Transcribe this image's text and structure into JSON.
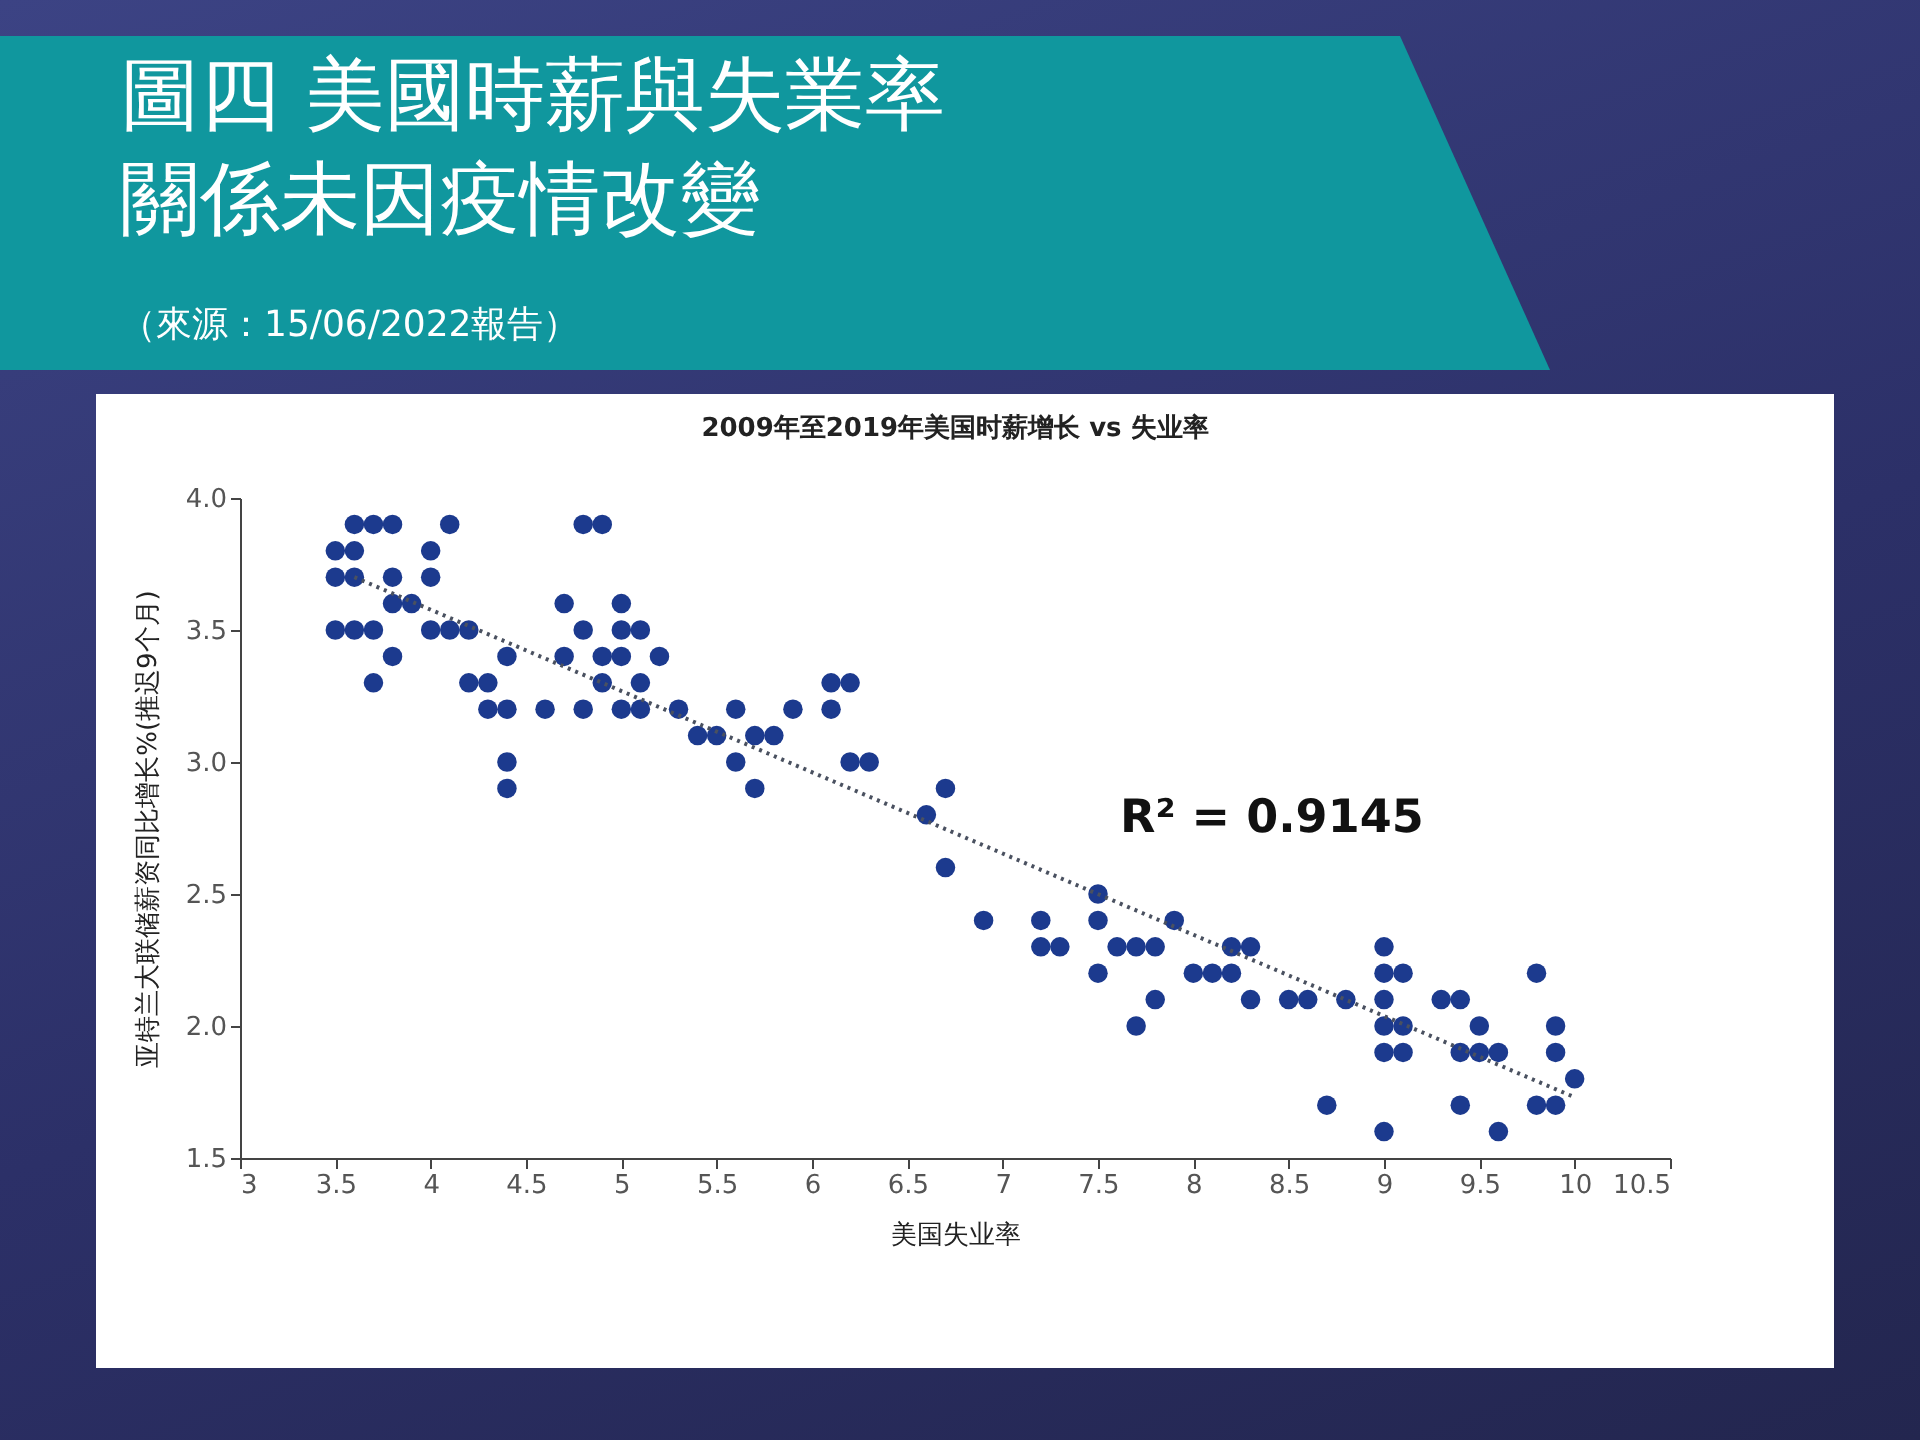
{
  "chart_data": {
    "type": "scatter",
    "title": "圖四 美國時薪與失業率關係未因疫情改變",
    "subtitle": "2009年至2019年美国时薪增长 vs 失业率",
    "xlabel": "美国失业率",
    "ylabel": "亚特兰大联储薪资同比增长%(推迟9个月)",
    "annotations": [
      "（來源：15/06/2022報告）",
      "R² = 0.9145"
    ],
    "series": [
      {
        "color": "#1c3a8e",
        "marker": "circle",
        "x": [
          3.6,
          3.7,
          3.8,
          4.1,
          4.8,
          4.9,
          3.5,
          3.6,
          4.0,
          3.5,
          3.6,
          3.8,
          4.0,
          3.8,
          3.9,
          4.7,
          5.0,
          3.5,
          3.6,
          3.7,
          4.0,
          4.1,
          4.2,
          4.8,
          5.0,
          5.1,
          3.8,
          4.4,
          4.7,
          4.9,
          5.0,
          5.2,
          3.7,
          4.2,
          4.3,
          4.9,
          5.1,
          6.1,
          6.2,
          4.3,
          4.4,
          4.6,
          4.8,
          5.0,
          5.1,
          5.3,
          5.6,
          5.9,
          6.1,
          5.4,
          5.5,
          5.7,
          5.8,
          4.4,
          5.6,
          6.2,
          6.3,
          4.4,
          5.7,
          6.7,
          6.6,
          6.7,
          7.5,
          6.9,
          7.2,
          7.5,
          7.9,
          7.2,
          7.3,
          7.6,
          7.7,
          7.8,
          8.2,
          8.3,
          9.0,
          7.5,
          8.0,
          8.1,
          8.2,
          9.0,
          9.1,
          9.8,
          7.8,
          8.3,
          8.5,
          8.6,
          8.8,
          9.0,
          9.3,
          9.4,
          7.7,
          9.0,
          9.1,
          9.5,
          9.9,
          9.0,
          9.1,
          9.4,
          9.5,
          9.6,
          9.9,
          10.0,
          8.7,
          9.4,
          9.8,
          9.9,
          9.0,
          9.6
        ],
        "values": [
          3.9,
          3.9,
          3.9,
          3.9,
          3.9,
          3.9,
          3.8,
          3.8,
          3.8,
          3.7,
          3.7,
          3.7,
          3.7,
          3.6,
          3.6,
          3.6,
          3.6,
          3.5,
          3.5,
          3.5,
          3.5,
          3.5,
          3.5,
          3.5,
          3.5,
          3.5,
          3.4,
          3.4,
          3.4,
          3.4,
          3.4,
          3.4,
          3.3,
          3.3,
          3.3,
          3.3,
          3.3,
          3.3,
          3.3,
          3.2,
          3.2,
          3.2,
          3.2,
          3.2,
          3.2,
          3.2,
          3.2,
          3.2,
          3.2,
          3.1,
          3.1,
          3.1,
          3.1,
          3.0,
          3.0,
          3.0,
          3.0,
          2.9,
          2.9,
          2.9,
          2.8,
          2.6,
          2.5,
          2.4,
          2.4,
          2.4,
          2.4,
          2.3,
          2.3,
          2.3,
          2.3,
          2.3,
          2.3,
          2.3,
          2.3,
          2.2,
          2.2,
          2.2,
          2.2,
          2.2,
          2.2,
          2.2,
          2.1,
          2.1,
          2.1,
          2.1,
          2.1,
          2.1,
          2.1,
          2.1,
          2.0,
          2.0,
          2.0,
          2.0,
          2.0,
          1.9,
          1.9,
          1.9,
          1.9,
          1.9,
          1.9,
          1.8,
          1.7,
          1.7,
          1.7,
          1.7,
          1.6,
          1.6
        ]
      },
      {
        "type": "line",
        "color": "#4a5160",
        "line_style": "dotted",
        "x": [
          3.6,
          10.0
        ],
        "values": [
          3.7,
          1.73
        ]
      }
    ],
    "xlim": [
      3,
      10.5
    ],
    "xticks": [
      3,
      3.5,
      4,
      4.5,
      5,
      5.5,
      6,
      6.5,
      7,
      7.5,
      8,
      8.5,
      9,
      9.5,
      10,
      10.5
    ],
    "ylim": [
      1.5,
      4.0
    ],
    "yticks": [
      1.5,
      {
        "value": 2,
        "label": "2.0"
      },
      2.5,
      {
        "value": 3,
        "label": "3.0"
      },
      3.5,
      {
        "value": 4,
        "label": "4.0"
      }
    ],
    "grid": false
  }
}
